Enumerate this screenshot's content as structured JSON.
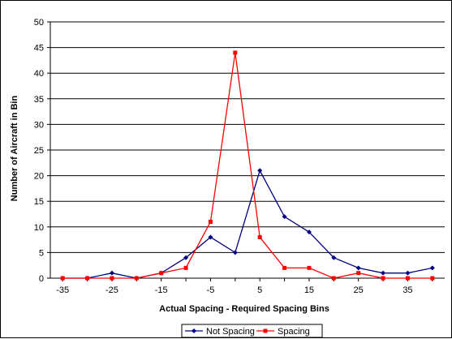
{
  "chart_data": {
    "type": "line",
    "title": "",
    "xlabel": "Actual Spacing - Required Spacing Bins",
    "ylabel": "Number of Aircraft in Bin",
    "x": [
      -35,
      -30,
      -25,
      -20,
      -15,
      -10,
      -5,
      0,
      5,
      10,
      15,
      20,
      25,
      30,
      35,
      40
    ],
    "x_tick_labels": [
      "-35",
      "-25",
      "-15",
      "-5",
      "5",
      "15",
      "25",
      "35"
    ],
    "x_tick_values": [
      -35,
      -25,
      -15,
      -5,
      5,
      15,
      25,
      35
    ],
    "xlim": [
      -37.5,
      42.5
    ],
    "ylim": [
      0,
      50
    ],
    "y_ticks": [
      0,
      5,
      10,
      15,
      20,
      25,
      30,
      35,
      40,
      45,
      50
    ],
    "grid": "horizontal",
    "legend_position": "bottom",
    "series": [
      {
        "name": "Not Spacing",
        "color": "#000080",
        "marker": "diamond",
        "values": [
          0,
          0,
          1,
          0,
          1,
          4,
          8,
          5,
          21,
          12,
          9,
          4,
          2,
          1,
          1,
          2
        ]
      },
      {
        "name": "Spacing",
        "color": "#ff0000",
        "marker": "square",
        "values": [
          0,
          0,
          0,
          0,
          1,
          2,
          11,
          44,
          8,
          2,
          2,
          0,
          1,
          0,
          0,
          0
        ]
      }
    ]
  }
}
